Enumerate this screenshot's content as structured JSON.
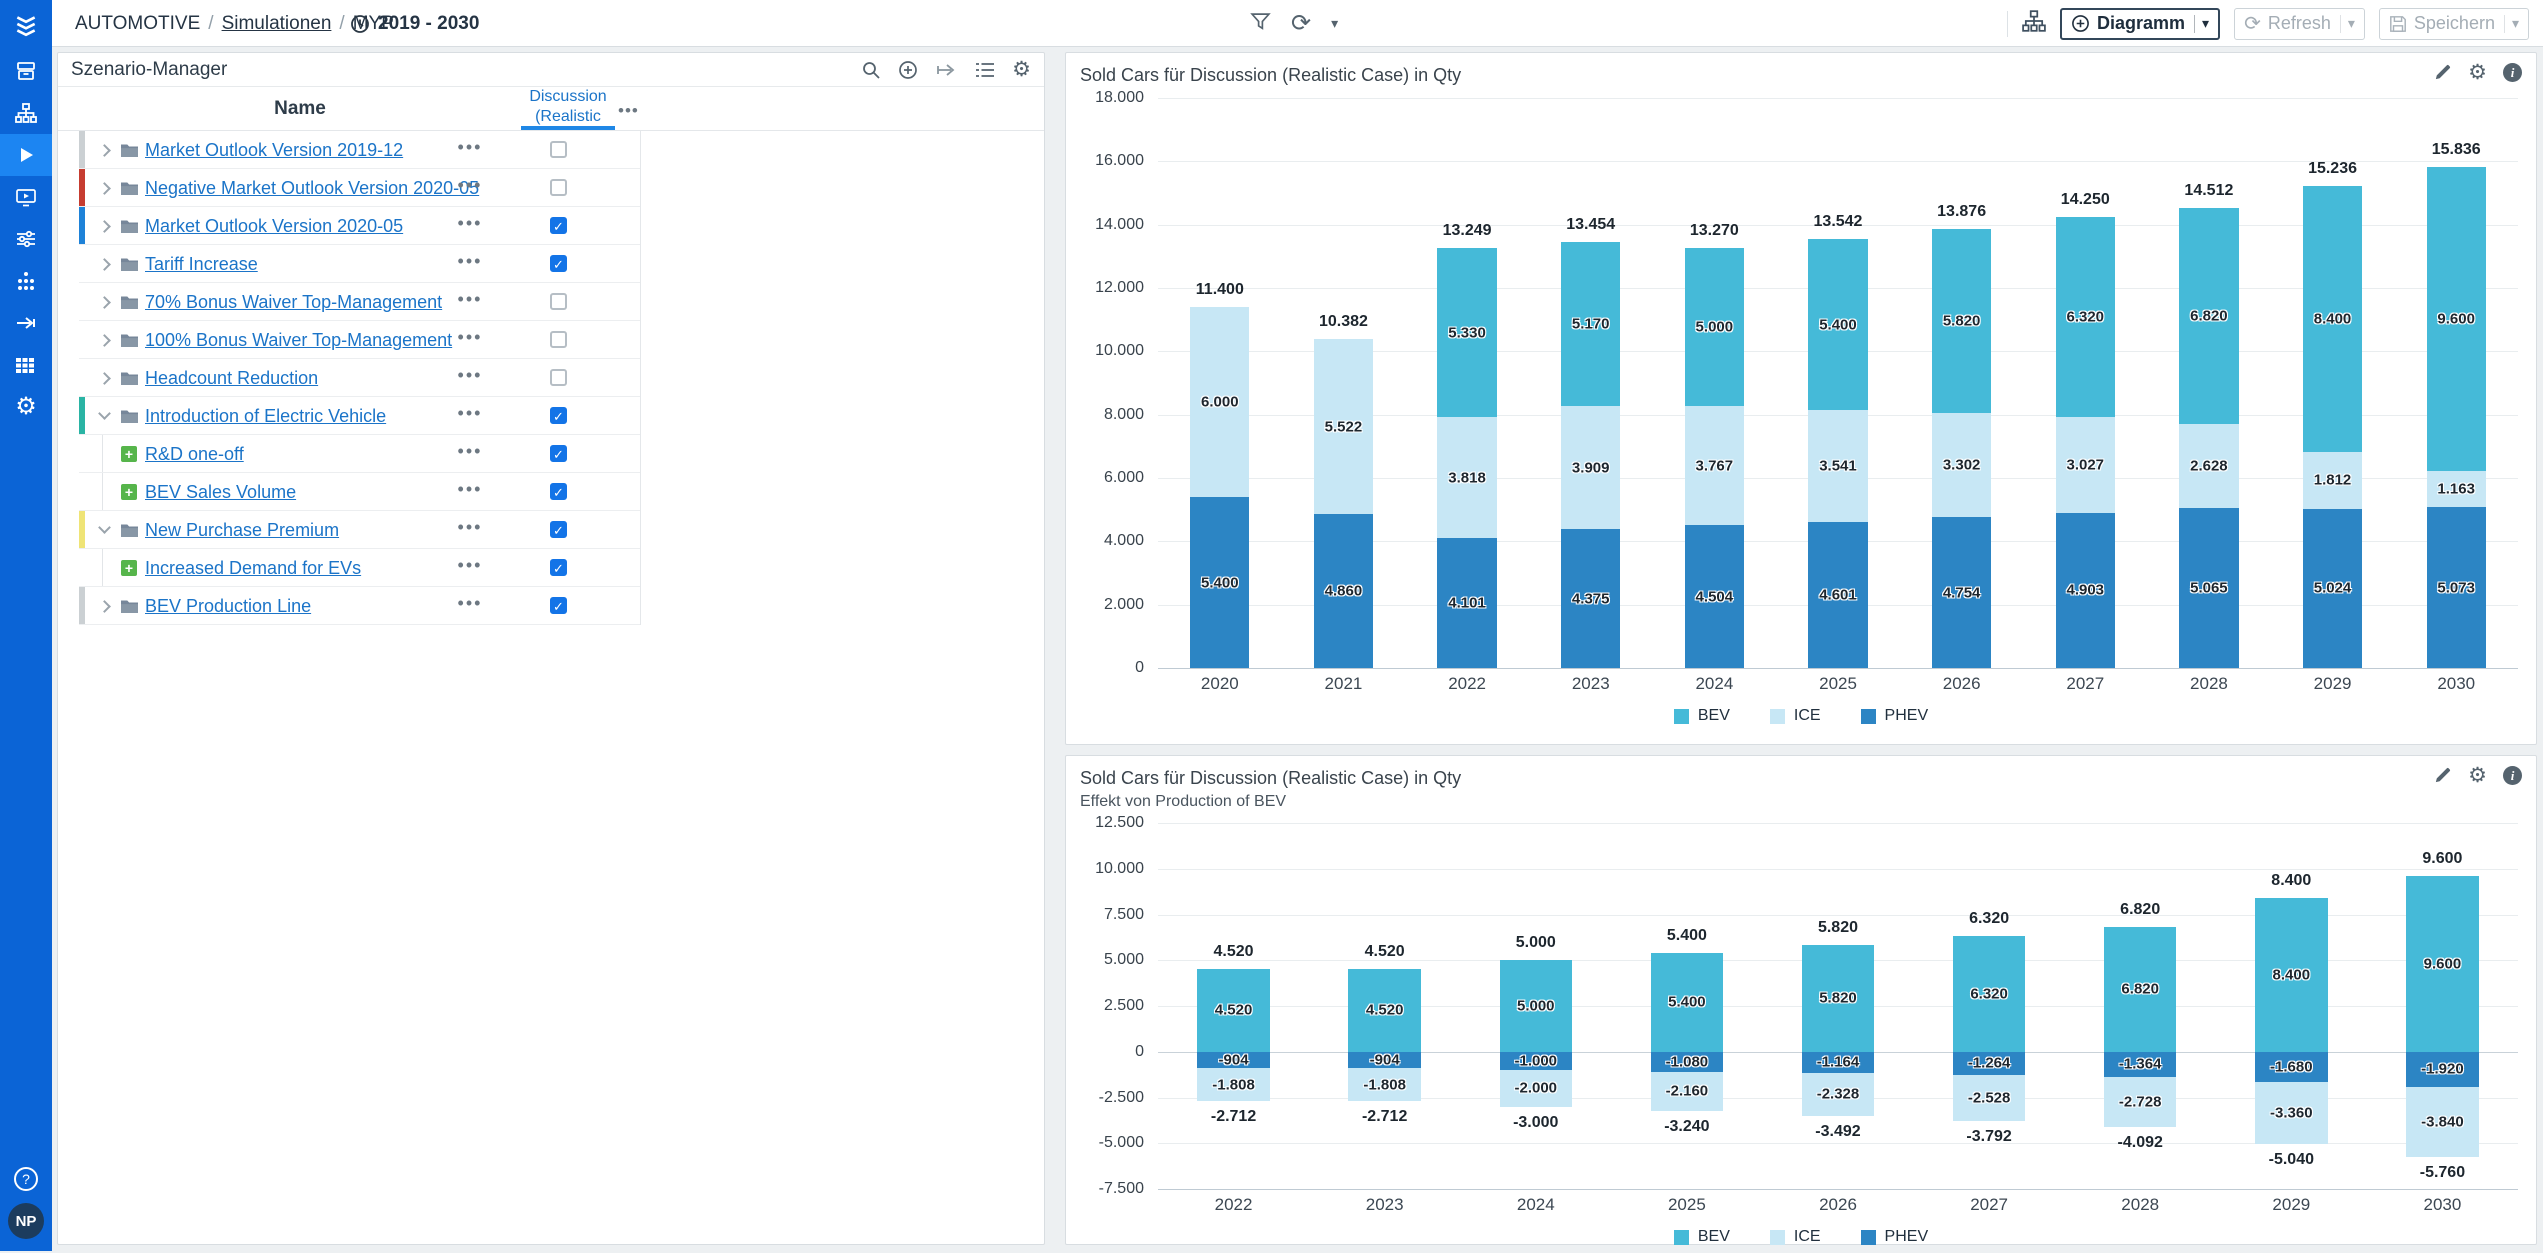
{
  "icons": {
    "check": "✓",
    "gear": "⚙",
    "caret": "▾",
    "dots": "•••",
    "info": "i",
    "help": "?",
    "refresh": "⟳",
    "plus": "+"
  },
  "topbar": {
    "breadcrumb": {
      "root": "AUTOMOTIVE",
      "section": "Simulationen",
      "page": "MYP",
      "separator": "/"
    },
    "date_range": "2019 - 2030",
    "diagram_button": "Diagramm",
    "refresh_button": "Refresh",
    "save_button": "Speichern"
  },
  "sidebar": {
    "avatar_initials": "NP"
  },
  "scenario_manager": {
    "title": "Szenario-Manager",
    "columns": {
      "name": "Name",
      "scenario_line1": "Discussion",
      "scenario_line2": "(Realistic"
    },
    "rows": [
      {
        "name": "Market Outlook Version 2019-12",
        "level": 0,
        "icon": "folder",
        "expanded": false,
        "checked": false,
        "strip": "#cbd0d3"
      },
      {
        "name": "Negative Market Outlook Version 2020-05",
        "level": 0,
        "icon": "folder",
        "expanded": false,
        "checked": false,
        "strip": "#c63c30"
      },
      {
        "name": "Market Outlook Version 2020-05",
        "level": 0,
        "icon": "folder",
        "expanded": false,
        "checked": true,
        "strip": "#1e82d8"
      },
      {
        "name": "Tariff Increase",
        "level": 0,
        "icon": "folder",
        "expanded": false,
        "checked": true,
        "strip": null
      },
      {
        "name": "70% Bonus Waiver Top-Management",
        "level": 0,
        "icon": "folder",
        "expanded": false,
        "checked": false,
        "strip": null
      },
      {
        "name": "100% Bonus Waiver Top-Management",
        "level": 0,
        "icon": "folder",
        "expanded": false,
        "checked": false,
        "strip": null
      },
      {
        "name": "Headcount Reduction",
        "level": 0,
        "icon": "folder",
        "expanded": false,
        "checked": false,
        "strip": null
      },
      {
        "name": "Introduction of Electric Vehicle",
        "level": 0,
        "icon": "folder",
        "expanded": true,
        "checked": true,
        "strip": "#2ab4a4"
      },
      {
        "name": "R&D one-off",
        "level": 1,
        "icon": "plus",
        "expanded": null,
        "checked": true,
        "strip": null
      },
      {
        "name": "BEV Sales Volume",
        "level": 1,
        "icon": "plus",
        "expanded": null,
        "checked": true,
        "strip": null
      },
      {
        "name": "New Purchase Premium",
        "level": 0,
        "icon": "folder",
        "expanded": true,
        "checked": true,
        "strip": "#efe476"
      },
      {
        "name": "Increased Demand for EVs",
        "level": 1,
        "icon": "plus",
        "expanded": null,
        "checked": true,
        "strip": null
      },
      {
        "name": "BEV Production Line",
        "level": 0,
        "icon": "folder",
        "expanded": false,
        "checked": true,
        "strip": "#cbd0d3"
      }
    ]
  },
  "chart_data": [
    {
      "type": "bar",
      "stacked": true,
      "title": "Sold Cars für Discussion (Realistic Case) in Qty",
      "categories": [
        "2020",
        "2021",
        "2022",
        "2023",
        "2024",
        "2025",
        "2026",
        "2027",
        "2028",
        "2029",
        "2030"
      ],
      "series": [
        {
          "name": "PHEV",
          "color": "#2c85c4",
          "values": [
            5400,
            4860,
            4101,
            4375,
            4504,
            4601,
            4754,
            4903,
            5065,
            5024,
            5073
          ]
        },
        {
          "name": "ICE",
          "color": "#c7e7f5",
          "values": [
            6000,
            5522,
            3818,
            3909,
            3767,
            3541,
            3302,
            3027,
            2628,
            1812,
            1163
          ]
        },
        {
          "name": "BEV",
          "color": "#45bad8",
          "values": [
            0,
            0,
            5330,
            5170,
            5000,
            5400,
            5820,
            6320,
            6820,
            8400,
            9600
          ]
        }
      ],
      "totals": [
        11400,
        10382,
        13249,
        13454,
        13270,
        13542,
        13876,
        14250,
        14512,
        15236,
        15836
      ],
      "ylim": [
        0,
        18000
      ],
      "ytick": 2000,
      "grid": true,
      "legend_position": "bottom",
      "legend": [
        "BEV",
        "ICE",
        "PHEV"
      ]
    },
    {
      "type": "bar",
      "stacked": true,
      "title": "Sold Cars für Discussion (Realistic Case) in Qty",
      "subtitle": "Effekt von Production of BEV",
      "categories": [
        "2022",
        "2023",
        "2024",
        "2025",
        "2026",
        "2027",
        "2028",
        "2029",
        "2030"
      ],
      "series": [
        {
          "name": "BEV",
          "color": "#45bad8",
          "values": [
            4520,
            4520,
            5000,
            5400,
            5820,
            6320,
            6820,
            8400,
            9600
          ]
        },
        {
          "name": "PHEV",
          "color": "#2c85c4",
          "values": [
            -904,
            -904,
            -1000,
            -1080,
            -1164,
            -1264,
            -1364,
            -1680,
            -1920
          ]
        },
        {
          "name": "ICE",
          "color": "#c7e7f5",
          "values": [
            -1808,
            -1808,
            -2000,
            -2160,
            -2328,
            -2528,
            -2728,
            -3360,
            -3840
          ]
        }
      ],
      "neg_totals": [
        -2712,
        -2712,
        -3000,
        -3240,
        -3492,
        -3792,
        -4092,
        -5040,
        -5760
      ],
      "pos_totals": [
        4520,
        4520,
        5000,
        5400,
        5820,
        6320,
        6820,
        8400,
        9600
      ],
      "ylim": [
        -7500,
        12500
      ],
      "ytick": 2500,
      "grid": true,
      "legend_position": "bottom",
      "legend": [
        "BEV",
        "ICE",
        "PHEV"
      ]
    }
  ]
}
